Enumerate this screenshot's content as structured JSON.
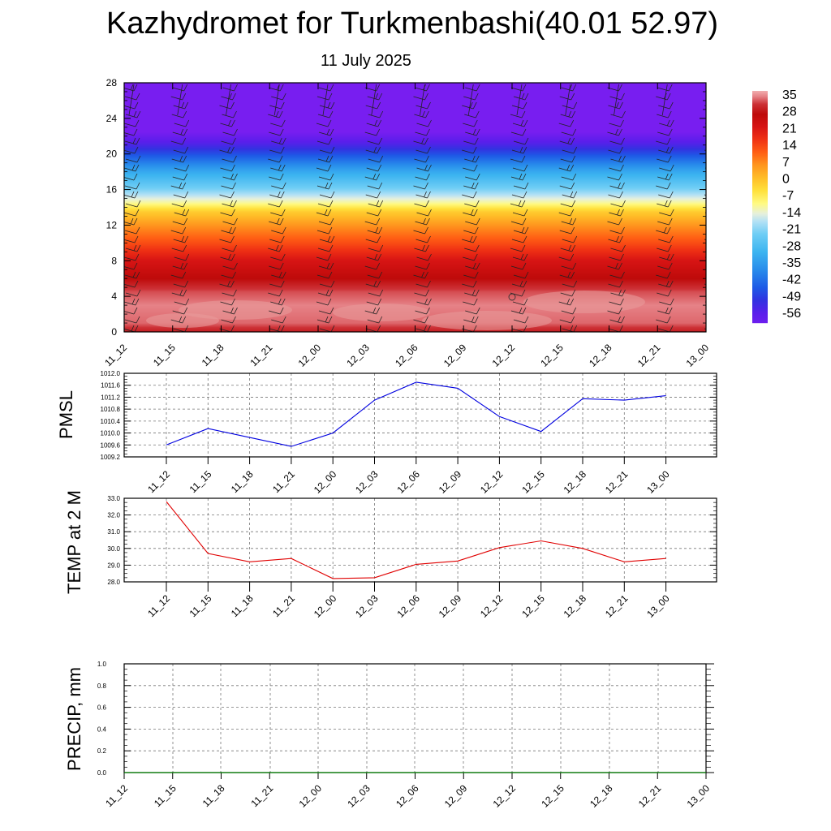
{
  "title": "Kazhydromet for Turkmenbashi(40.01 52.97)",
  "subtitle": "11 July 2025",
  "colorbar": {
    "labels": [
      "35",
      "28",
      "21",
      "14",
      "7",
      "0",
      "-7",
      "-14",
      "-21",
      "-28",
      "-35",
      "-42",
      "-49",
      "-56"
    ]
  },
  "chart_data": [
    {
      "type": "heatmap",
      "name": "temperature cross-section with wind barbs",
      "x_ticks": [
        "11_12",
        "11_15",
        "11_18",
        "11_21",
        "12_00",
        "12_03",
        "12_06",
        "12_09",
        "12_12",
        "12_15",
        "12_18",
        "12_21",
        "13_00"
      ],
      "y_ticks": [
        "0",
        "4",
        "8",
        "12",
        "16",
        "20",
        "24",
        "28"
      ],
      "ylim": [
        0,
        28
      ],
      "value_range": [
        -56,
        35
      ],
      "profile": [
        {
          "level": 0,
          "value": 28
        },
        {
          "level": 1,
          "value": 32
        },
        {
          "level": 3,
          "value": 33
        },
        {
          "level": 4.5,
          "value": 31
        },
        {
          "level": 6,
          "value": 26
        },
        {
          "level": 8,
          "value": 21
        },
        {
          "level": 10,
          "value": 13
        },
        {
          "level": 12,
          "value": 6
        },
        {
          "level": 13.5,
          "value": -1
        },
        {
          "level": 14.5,
          "value": -10
        },
        {
          "level": 16,
          "value": -20
        },
        {
          "level": 18,
          "value": -30
        },
        {
          "level": 19.5,
          "value": -40
        },
        {
          "level": 21,
          "value": -50
        },
        {
          "level": 22.5,
          "value": -58
        },
        {
          "level": 28,
          "value": -58
        }
      ]
    },
    {
      "type": "line",
      "ylabel": "PMSL",
      "categories": [
        "11_12",
        "11_15",
        "11_18",
        "11_21",
        "12_00",
        "12_03",
        "12_06",
        "12_09",
        "12_12",
        "12_15",
        "12_18",
        "12_21",
        "13_00"
      ],
      "values": [
        1009.6,
        1010.15,
        1009.85,
        1009.55,
        1010.0,
        1011.1,
        1011.7,
        1011.5,
        1010.55,
        1010.05,
        1011.15,
        1011.1,
        1011.25
      ],
      "ylim": [
        1009.2,
        1012.0
      ],
      "y_ticks": [
        "1009.2",
        "1009.6",
        "1010.0",
        "1010.4",
        "1010.8",
        "1011.2",
        "1011.6",
        "1012.0"
      ],
      "color": "#0000e0",
      "grid": true
    },
    {
      "type": "line",
      "ylabel": "TEMP at 2 M",
      "categories": [
        "11_12",
        "11_15",
        "11_18",
        "11_21",
        "12_00",
        "12_03",
        "12_06",
        "12_09",
        "12_12",
        "12_15",
        "12_18",
        "12_21",
        "13_00"
      ],
      "values": [
        32.8,
        29.7,
        29.2,
        29.4,
        28.2,
        28.25,
        29.05,
        29.25,
        30.05,
        30.45,
        30.0,
        29.2,
        29.4
      ],
      "ylim": [
        28.0,
        33.0
      ],
      "y_ticks": [
        "28.0",
        "29.0",
        "30.0",
        "31.0",
        "32.0",
        "33.0"
      ],
      "color": "#e00000",
      "grid": true
    },
    {
      "type": "line",
      "ylabel": "PRECIP, mm",
      "categories": [
        "11_12",
        "11_15",
        "11_18",
        "11_21",
        "12_00",
        "12_03",
        "12_06",
        "12_09",
        "12_12",
        "12_15",
        "12_18",
        "12_21",
        "13_00"
      ],
      "values": [
        0,
        0,
        0,
        0,
        0,
        0,
        0,
        0,
        0,
        0,
        0,
        0,
        0
      ],
      "ylim": [
        0.0,
        1.0
      ],
      "y_ticks": [
        "0.0",
        "0.2",
        "0.4",
        "0.6",
        "0.8",
        "1.0"
      ],
      "color": "#008000",
      "grid": true
    }
  ]
}
